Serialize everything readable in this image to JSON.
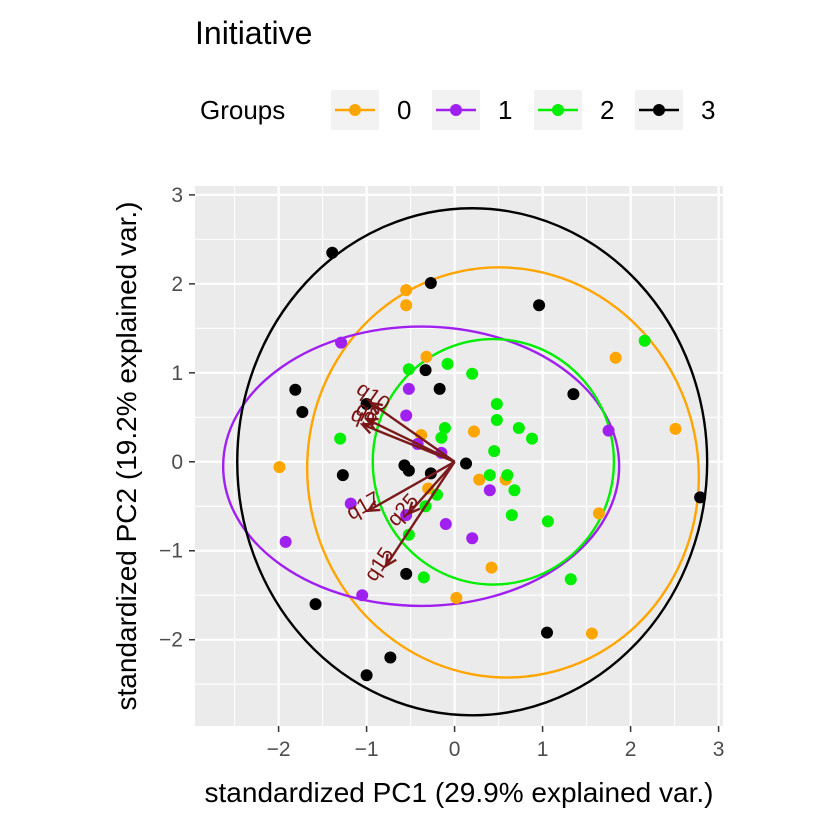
{
  "chart_data": {
    "type": "scatter",
    "title": "Initiative",
    "xlabel": "standardized PC1 (29.9% explained var.)",
    "ylabel": "standardized PC2 (19.2% explained var.)",
    "xlim": [
      -2.95,
      3.05
    ],
    "ylim": [
      -2.97,
      3.1
    ],
    "x_ticks": [
      -2,
      -1,
      0,
      1,
      2,
      3
    ],
    "x_tick_labels": [
      "−2",
      "−1",
      "0",
      "1",
      "2",
      "3"
    ],
    "y_ticks": [
      -2,
      -1,
      0,
      1,
      2,
      3
    ],
    "y_tick_labels": [
      "−2",
      "−1",
      "0",
      "1",
      "2",
      "3"
    ],
    "grid": true,
    "legend": {
      "title": "Groups",
      "placement": "top",
      "entries": [
        {
          "label": "0",
          "color": "#FFA500"
        },
        {
          "label": "1",
          "color": "#A020F0"
        },
        {
          "label": "2",
          "color": "#00EE00"
        },
        {
          "label": "3",
          "color": "#000000"
        }
      ]
    },
    "series": [
      {
        "name": "0",
        "color": "#FFA500",
        "points": [
          [
            -1.99,
            -0.06
          ],
          [
            -0.55,
            1.93
          ],
          [
            -0.55,
            1.76
          ],
          [
            -0.32,
            1.18
          ],
          [
            -0.38,
            0.3
          ],
          [
            -0.3,
            -0.3
          ],
          [
            0.22,
            0.34
          ],
          [
            0.28,
            -0.2
          ],
          [
            0.58,
            -0.2
          ],
          [
            0.42,
            -1.19
          ],
          [
            0.02,
            -1.53
          ],
          [
            1.83,
            1.17
          ],
          [
            2.51,
            0.37
          ],
          [
            1.64,
            -0.58
          ],
          [
            1.56,
            -1.93
          ]
        ]
      },
      {
        "name": "1",
        "color": "#A020F0",
        "points": [
          [
            -1.29,
            1.34
          ],
          [
            -0.52,
            0.82
          ],
          [
            -0.55,
            0.52
          ],
          [
            -0.42,
            0.2
          ],
          [
            -0.15,
            0.1
          ],
          [
            -1.18,
            -0.47
          ],
          [
            -1.92,
            -0.9
          ],
          [
            -0.55,
            -0.6
          ],
          [
            -0.1,
            -0.7
          ],
          [
            -1.05,
            -1.5
          ],
          [
            0.4,
            -0.32
          ],
          [
            0.2,
            -0.86
          ],
          [
            1.75,
            0.35
          ]
        ]
      },
      {
        "name": "2",
        "color": "#00EE00",
        "points": [
          [
            -0.52,
            1.04
          ],
          [
            -0.08,
            1.1
          ],
          [
            0.2,
            0.99
          ],
          [
            -0.15,
            0.27
          ],
          [
            -0.11,
            0.38
          ],
          [
            0.48,
            0.65
          ],
          [
            0.48,
            0.47
          ],
          [
            0.73,
            0.38
          ],
          [
            0.88,
            0.26
          ],
          [
            0.45,
            0.12
          ],
          [
            0.4,
            -0.15
          ],
          [
            0.6,
            -0.15
          ],
          [
            0.68,
            -0.32
          ],
          [
            -0.2,
            -0.37
          ],
          [
            -0.33,
            -0.5
          ],
          [
            0.65,
            -0.6
          ],
          [
            1.06,
            -0.67
          ],
          [
            -0.52,
            -0.82
          ],
          [
            -0.35,
            -1.3
          ],
          [
            1.32,
            -1.32
          ],
          [
            2.16,
            1.36
          ],
          [
            -1.3,
            0.26
          ]
        ]
      },
      {
        "name": "3",
        "color": "#000000",
        "points": [
          [
            -1.39,
            2.35
          ],
          [
            -0.27,
            2.01
          ],
          [
            0.96,
            1.76
          ],
          [
            -0.33,
            1.03
          ],
          [
            -0.17,
            0.82
          ],
          [
            -1.81,
            0.81
          ],
          [
            -1.73,
            0.56
          ],
          [
            -1.0,
            0.65
          ],
          [
            -1.27,
            -0.15
          ],
          [
            -0.57,
            -0.04
          ],
          [
            -0.52,
            -0.1
          ],
          [
            -0.27,
            -0.13
          ],
          [
            0.13,
            -0.02
          ],
          [
            1.35,
            0.76
          ],
          [
            2.79,
            -0.4
          ],
          [
            -1.58,
            -1.6
          ],
          [
            -0.55,
            -1.26
          ],
          [
            1.05,
            -1.92
          ],
          [
            -0.73,
            -2.2
          ],
          [
            -1.0,
            -2.4
          ]
        ]
      }
    ],
    "ellipses": [
      {
        "group": "0",
        "color": "#FFA500",
        "cx": 0.55,
        "cy": -0.12,
        "rx": 2.22,
        "ry": 2.31,
        "rotation_deg": 12
      },
      {
        "group": "1",
        "color": "#A020F0",
        "cx": -0.38,
        "cy": -0.05,
        "rx": 2.25,
        "ry": 1.57,
        "rotation_deg": 0
      },
      {
        "group": "2",
        "color": "#00EE00",
        "cx": 0.44,
        "cy": 0.0,
        "rx": 1.37,
        "ry": 1.38,
        "rotation_deg": 0
      },
      {
        "group": "3",
        "color": "#000000",
        "cx": 0.2,
        "cy": 0.0,
        "rx": 2.67,
        "ry": 2.85,
        "rotation_deg": 0
      }
    ],
    "loadings": [
      {
        "label": "q10",
        "x": -0.95,
        "y": 0.66
      },
      {
        "label": "q8",
        "x": -1.0,
        "y": 0.48
      },
      {
        "label": "q9",
        "x": -1.05,
        "y": 0.42
      },
      {
        "label": "q17",
        "x": -0.98,
        "y": -0.55
      },
      {
        "label": "q25",
        "x": -0.52,
        "y": -0.58
      },
      {
        "label": "q15",
        "x": -0.78,
        "y": -1.17
      }
    ],
    "loading_color": "#7A1A1A"
  }
}
